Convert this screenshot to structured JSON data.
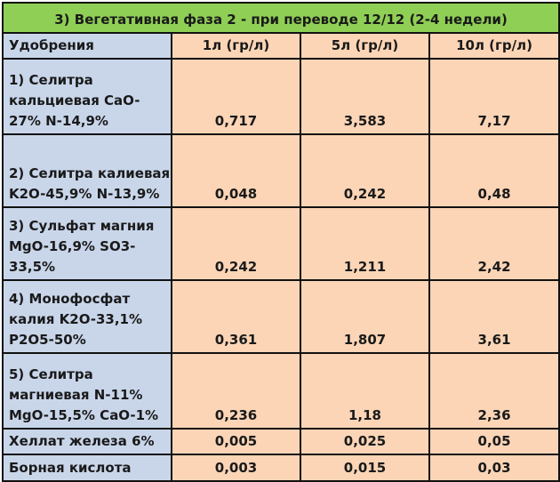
{
  "table": {
    "title": "3) Вегетативная фаза 2 - при переводе 12/12 (2-4 недели)",
    "header": [
      "Удобрения",
      "1л (гр/л)",
      "5л (гр/л)",
      "10л (гр/л)"
    ],
    "rows": [
      {
        "name": [
          "1) Селитра",
          "кальциевая CaO-",
          "27% N-14,9%"
        ],
        "values": [
          "0,717",
          "3,583",
          "7,17"
        ]
      },
      {
        "name": [
          "2) Селитра калиевая",
          "K2O-45,9% N-13,9%"
        ],
        "values": [
          "0,048",
          "0,242",
          "0,48"
        ]
      },
      {
        "name": [
          "3) Сульфат магния",
          "MgO-16,9% SO3-",
          "33,5%"
        ],
        "values": [
          "0,242",
          "1,211",
          "2,42"
        ]
      },
      {
        "name": [
          "4) Монофосфат",
          "калия K2O-33,1%",
          "P2O5-50%"
        ],
        "values": [
          "0,361",
          "1,807",
          "3,61"
        ]
      },
      {
        "name": [
          "5) Селитра",
          "магниевая N-11%",
          "MgO-15,5% CaO-1%"
        ],
        "values": [
          "0,236",
          "1,18",
          "2,36"
        ]
      },
      {
        "name": [
          "Хеллат железа 6%"
        ],
        "values": [
          "0,005",
          "0,025",
          "0,05"
        ]
      },
      {
        "name": [
          "Борная кислота"
        ],
        "values": [
          "0,003",
          "0,015",
          "0,03"
        ]
      }
    ]
  }
}
